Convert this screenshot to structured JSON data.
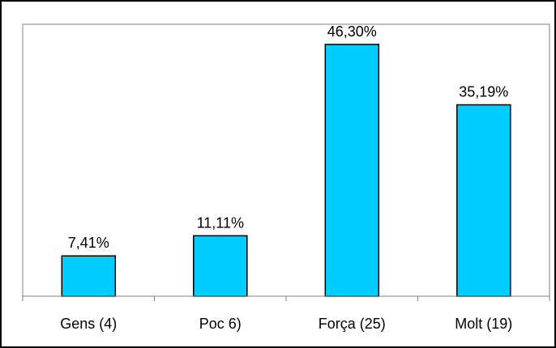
{
  "colors": {
    "bar_fill": "#00CCFF",
    "bar_stroke": "#000000",
    "axis": "#808080",
    "border": "#000000",
    "background": "#FFFFFF"
  },
  "chart_data": {
    "type": "bar",
    "categories": [
      "Gens (4)",
      "Poc 6)",
      "Força (25)",
      "Molt (19)"
    ],
    "values": [
      7.41,
      11.11,
      46.3,
      35.19
    ],
    "data_labels": [
      "7,41%",
      "11,11%",
      "46,30%",
      "35,19%"
    ],
    "title": "",
    "xlabel": "",
    "ylabel": "",
    "ylim": [
      0,
      50
    ],
    "grid": false,
    "legend": "none"
  }
}
